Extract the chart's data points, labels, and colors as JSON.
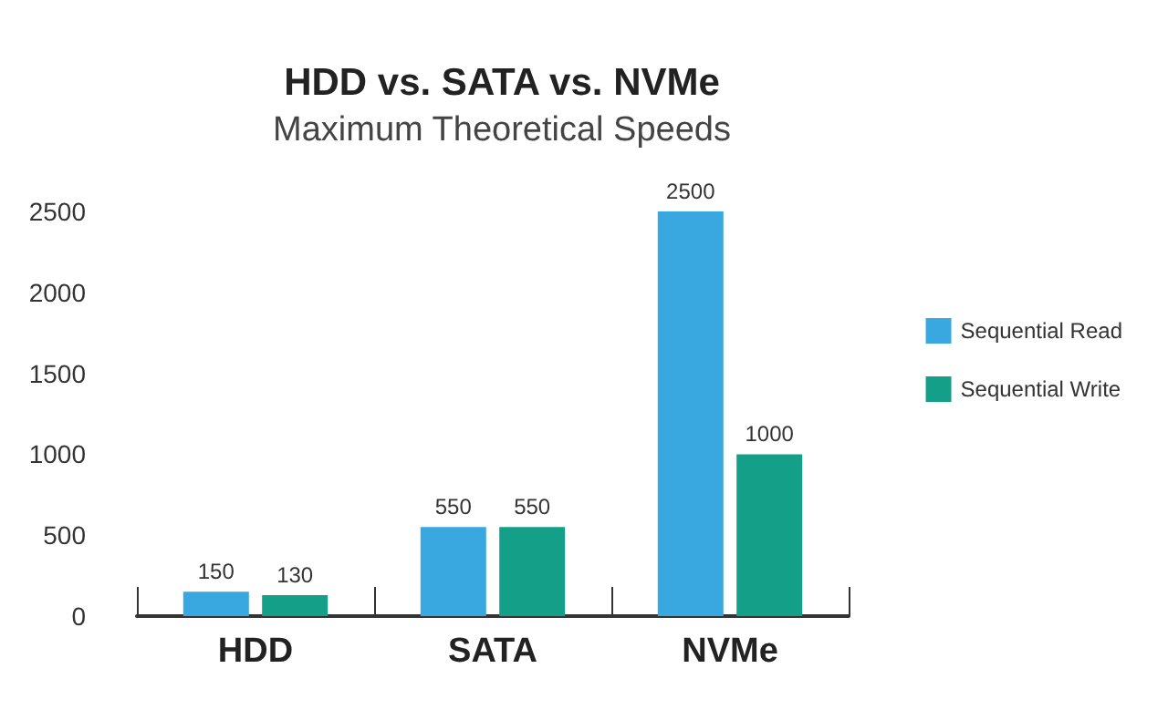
{
  "chart_data": {
    "type": "bar",
    "title": "HDD vs. SATA vs. NVMe",
    "subtitle": "Maximum Theoretical Speeds",
    "categories": [
      "HDD",
      "SATA",
      "NVMe"
    ],
    "series": [
      {
        "name": "Sequential Read",
        "color": "#3aa8e0",
        "values": [
          150,
          550,
          2500
        ]
      },
      {
        "name": "Sequential Write",
        "color": "#14a088",
        "values": [
          130,
          550,
          1000
        ]
      }
    ],
    "ylim": [
      0,
      2500
    ],
    "yticks": [
      0,
      500,
      1000,
      1500,
      2000,
      2500
    ],
    "grid": false,
    "legend": "right",
    "data_labels": true
  }
}
